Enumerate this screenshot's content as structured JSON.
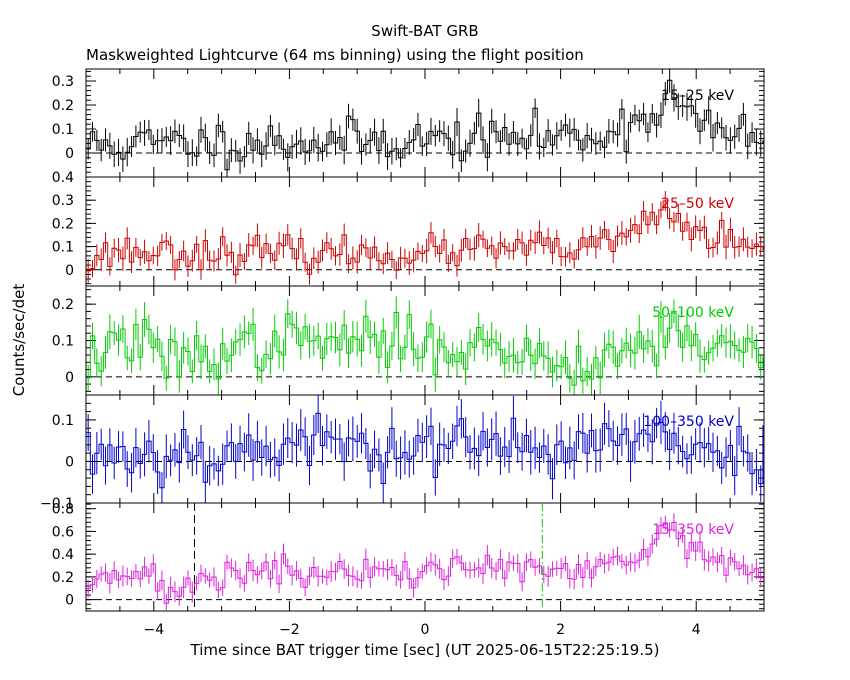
{
  "title": "Swift-BAT GRB",
  "subtitle": "Maskweighted Lightcurve (64 ms binning) using the flight position",
  "chart_data": {
    "type": "line",
    "style": "step-with-error-bars",
    "xlabel": "Time since BAT trigger time [sec] (UT 2025-06-15T22:25:19.5)",
    "ylabel": "Counts/sec/det",
    "xlim": [
      -5,
      5
    ],
    "x_ticks": [
      -4,
      -2,
      0,
      2,
      4
    ],
    "x_tick_labels": [
      "−4",
      "−2",
      "0",
      "2",
      "4"
    ],
    "bin_width": 0.064,
    "panels": [
      {
        "name": "15-25 keV",
        "label": "15–25 keV",
        "color": "#000000",
        "ylim": [
          -0.1,
          0.35
        ],
        "yticks": [
          0,
          0.1,
          0.2,
          0.3
        ],
        "ytick_labels": [
          "0",
          "0.1",
          "0.2",
          "0.3"
        ],
        "level_points": [
          [
            -5,
            0.03
          ],
          [
            -4,
            0.04
          ],
          [
            -1,
            0.05
          ],
          [
            1,
            0.06
          ],
          [
            2.5,
            0.07
          ],
          [
            3.0,
            0.12
          ],
          [
            3.4,
            0.17
          ],
          [
            3.6,
            0.25
          ],
          [
            3.9,
            0.16
          ],
          [
            4.2,
            0.09
          ],
          [
            5,
            0.06
          ]
        ],
        "noise": 0.045,
        "err": 0.05,
        "seed": 11
      },
      {
        "name": "25-50 keV",
        "label": "25–50 keV",
        "color": "#cc0000",
        "ylim": [
          -0.07,
          0.4
        ],
        "yticks": [
          0,
          0.1,
          0.2,
          0.3,
          0.4
        ],
        "ytick_labels": [
          "0",
          "0.1",
          "0.2",
          "0.3",
          "0.4"
        ],
        "level_points": [
          [
            -5,
            0.03
          ],
          [
            -4.6,
            0.08
          ],
          [
            -2,
            0.07
          ],
          [
            0,
            0.07
          ],
          [
            1,
            0.09
          ],
          [
            2.5,
            0.09
          ],
          [
            3.0,
            0.15
          ],
          [
            3.5,
            0.25
          ],
          [
            3.9,
            0.18
          ],
          [
            4.5,
            0.11
          ],
          [
            5,
            0.08
          ]
        ],
        "noise": 0.035,
        "err": 0.045,
        "seed": 23
      },
      {
        "name": "50-100 keV",
        "label": "50–100 keV",
        "color": "#00cc00",
        "ylim": [
          -0.05,
          0.25
        ],
        "yticks": [
          0,
          0.1,
          0.2
        ],
        "ytick_labels": [
          "0",
          "0.1",
          "0.2"
        ],
        "level_points": [
          [
            -5,
            0.03
          ],
          [
            -4.6,
            0.1
          ],
          [
            -4.1,
            0.09
          ],
          [
            -3.8,
            0.04
          ],
          [
            -3,
            0.07
          ],
          [
            -2,
            0.1
          ],
          [
            0,
            0.09
          ],
          [
            1.5,
            0.07
          ],
          [
            2,
            0.03
          ],
          [
            2.5,
            0.05
          ],
          [
            3.2,
            0.09
          ],
          [
            3.7,
            0.13
          ],
          [
            4.3,
            0.08
          ],
          [
            5,
            0.06
          ]
        ],
        "noise": 0.035,
        "err": 0.04,
        "seed": 37
      },
      {
        "name": "100-350 keV",
        "label": "100–350 keV",
        "color": "#0000cc",
        "ylim": [
          -0.1,
          0.16
        ],
        "yticks": [
          -0.1,
          0,
          0.1
        ],
        "ytick_labels": [
          "−0.1",
          "0",
          "0.1"
        ],
        "level_points": [
          [
            -5,
            0.02
          ],
          [
            -3,
            0.02
          ],
          [
            -2,
            0.04
          ],
          [
            0,
            0.04
          ],
          [
            1,
            0.03
          ],
          [
            3,
            0.05
          ],
          [
            5,
            0.02
          ]
        ],
        "noise": 0.035,
        "err": 0.045,
        "seed": 53
      },
      {
        "name": "15-350 keV",
        "label": "15–350 keV",
        "color": "#dd22dd",
        "ylim": [
          -0.1,
          0.85
        ],
        "yticks": [
          0,
          0.2,
          0.4,
          0.6,
          0.8
        ],
        "ytick_labels": [
          "0",
          "0.2",
          "0.4",
          "0.6",
          "0.8"
        ],
        "level_points": [
          [
            -5,
            0.1
          ],
          [
            -4.7,
            0.28
          ],
          [
            -4.2,
            0.25
          ],
          [
            -3.8,
            0.05
          ],
          [
            -3.4,
            0.12
          ],
          [
            -3,
            0.25
          ],
          [
            -1,
            0.22
          ],
          [
            0,
            0.25
          ],
          [
            1,
            0.3
          ],
          [
            2,
            0.22
          ],
          [
            3.0,
            0.3
          ],
          [
            3.4,
            0.5
          ],
          [
            3.6,
            0.68
          ],
          [
            3.9,
            0.45
          ],
          [
            4.4,
            0.32
          ],
          [
            5,
            0.22
          ]
        ],
        "noise": 0.07,
        "err": 0.08,
        "seed": 71,
        "markers": [
          {
            "x": -3.4,
            "style": "dashed",
            "color": "#000000"
          },
          {
            "x": 1.73,
            "style": "dash-dot",
            "color": "#00cc00"
          }
        ]
      }
    ]
  }
}
